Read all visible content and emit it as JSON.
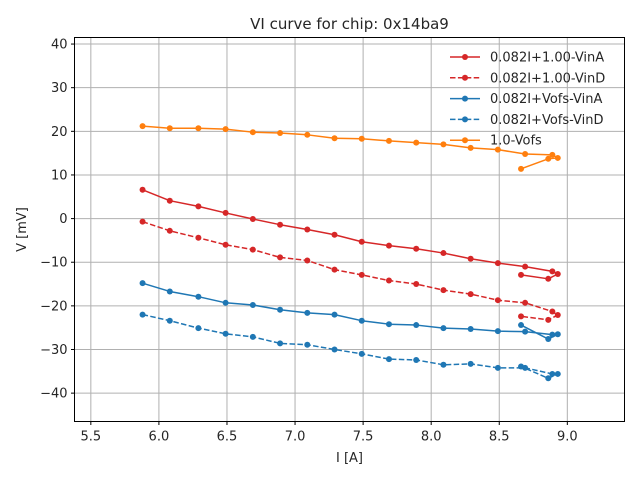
{
  "chart_data": {
    "type": "line",
    "title": "VI curve for chip: 0x14ba9",
    "xlabel": "I [A]",
    "ylabel": "V [mV]",
    "xlim": [
      5.38,
      9.42
    ],
    "ylim": [
      -46.5,
      41.5
    ],
    "xticks": [
      5.5,
      6.0,
      6.5,
      7.0,
      7.5,
      8.0,
      8.5,
      9.0
    ],
    "xtick_labels": [
      "5.5",
      "6.0",
      "6.5",
      "7.0",
      "7.5",
      "8.0",
      "8.5",
      "9.0"
    ],
    "yticks": [
      -40,
      -30,
      -20,
      -10,
      0,
      10,
      20,
      30,
      40
    ],
    "ytick_labels": [
      "−40",
      "−30",
      "−20",
      "−10",
      "0",
      "10",
      "20",
      "30",
      "40"
    ],
    "grid": true,
    "legend_position": "top-right",
    "x": [
      5.88,
      6.08,
      6.29,
      6.49,
      6.69,
      6.89,
      7.09,
      7.29,
      7.49,
      7.69,
      7.89,
      8.09,
      8.29,
      8.49,
      8.69,
      8.89,
      8.93,
      8.86,
      8.66
    ],
    "series": [
      {
        "name": "0.082I+1.00-VinA",
        "color": "#d62728",
        "linestyle": "solid",
        "values": [
          6.6,
          4.1,
          2.8,
          1.3,
          -0.1,
          -1.4,
          -2.5,
          -3.7,
          -5.3,
          -6.2,
          -6.9,
          -7.9,
          -9.2,
          -10.2,
          -11.0,
          -12.1,
          -12.7,
          -13.8,
          -12.9
        ]
      },
      {
        "name": "0.082I+1.00-VinD",
        "color": "#d62728",
        "linestyle": "dashed",
        "values": [
          -0.7,
          -2.8,
          -4.4,
          -6.0,
          -7.1,
          -8.9,
          -9.6,
          -11.7,
          -12.9,
          -14.2,
          -15.0,
          -16.4,
          -17.3,
          -18.7,
          -19.3,
          -21.3,
          -22.1,
          -23.2,
          -22.4
        ]
      },
      {
        "name": "0.082I+Vofs-VinA",
        "color": "#1f77b4",
        "linestyle": "solid",
        "values": [
          -14.8,
          -16.7,
          -17.9,
          -19.3,
          -19.8,
          -20.9,
          -21.6,
          -22.0,
          -23.4,
          -24.2,
          -24.4,
          -25.1,
          -25.3,
          -25.8,
          -25.9,
          -26.6,
          -26.5,
          -27.6,
          -24.4
        ]
      },
      {
        "name": "0.082I+Vofs-VinD",
        "color": "#1f77b4",
        "linestyle": "dashed",
        "values": [
          -22.0,
          -23.4,
          -25.1,
          -26.4,
          -27.1,
          -28.6,
          -28.9,
          -30.0,
          -31.0,
          -32.2,
          -32.4,
          -33.5,
          -33.3,
          -34.2,
          -34.2,
          -35.6,
          -35.6,
          -36.6,
          -33.9
        ]
      },
      {
        "name": "1.0-Vofs",
        "color": "#ff7f0e",
        "linestyle": "solid",
        "values": [
          21.2,
          20.7,
          20.7,
          20.5,
          19.8,
          19.6,
          19.2,
          18.4,
          18.3,
          17.8,
          17.4,
          17.0,
          16.2,
          15.8,
          14.8,
          14.6,
          13.9,
          13.7,
          11.4
        ]
      }
    ]
  }
}
